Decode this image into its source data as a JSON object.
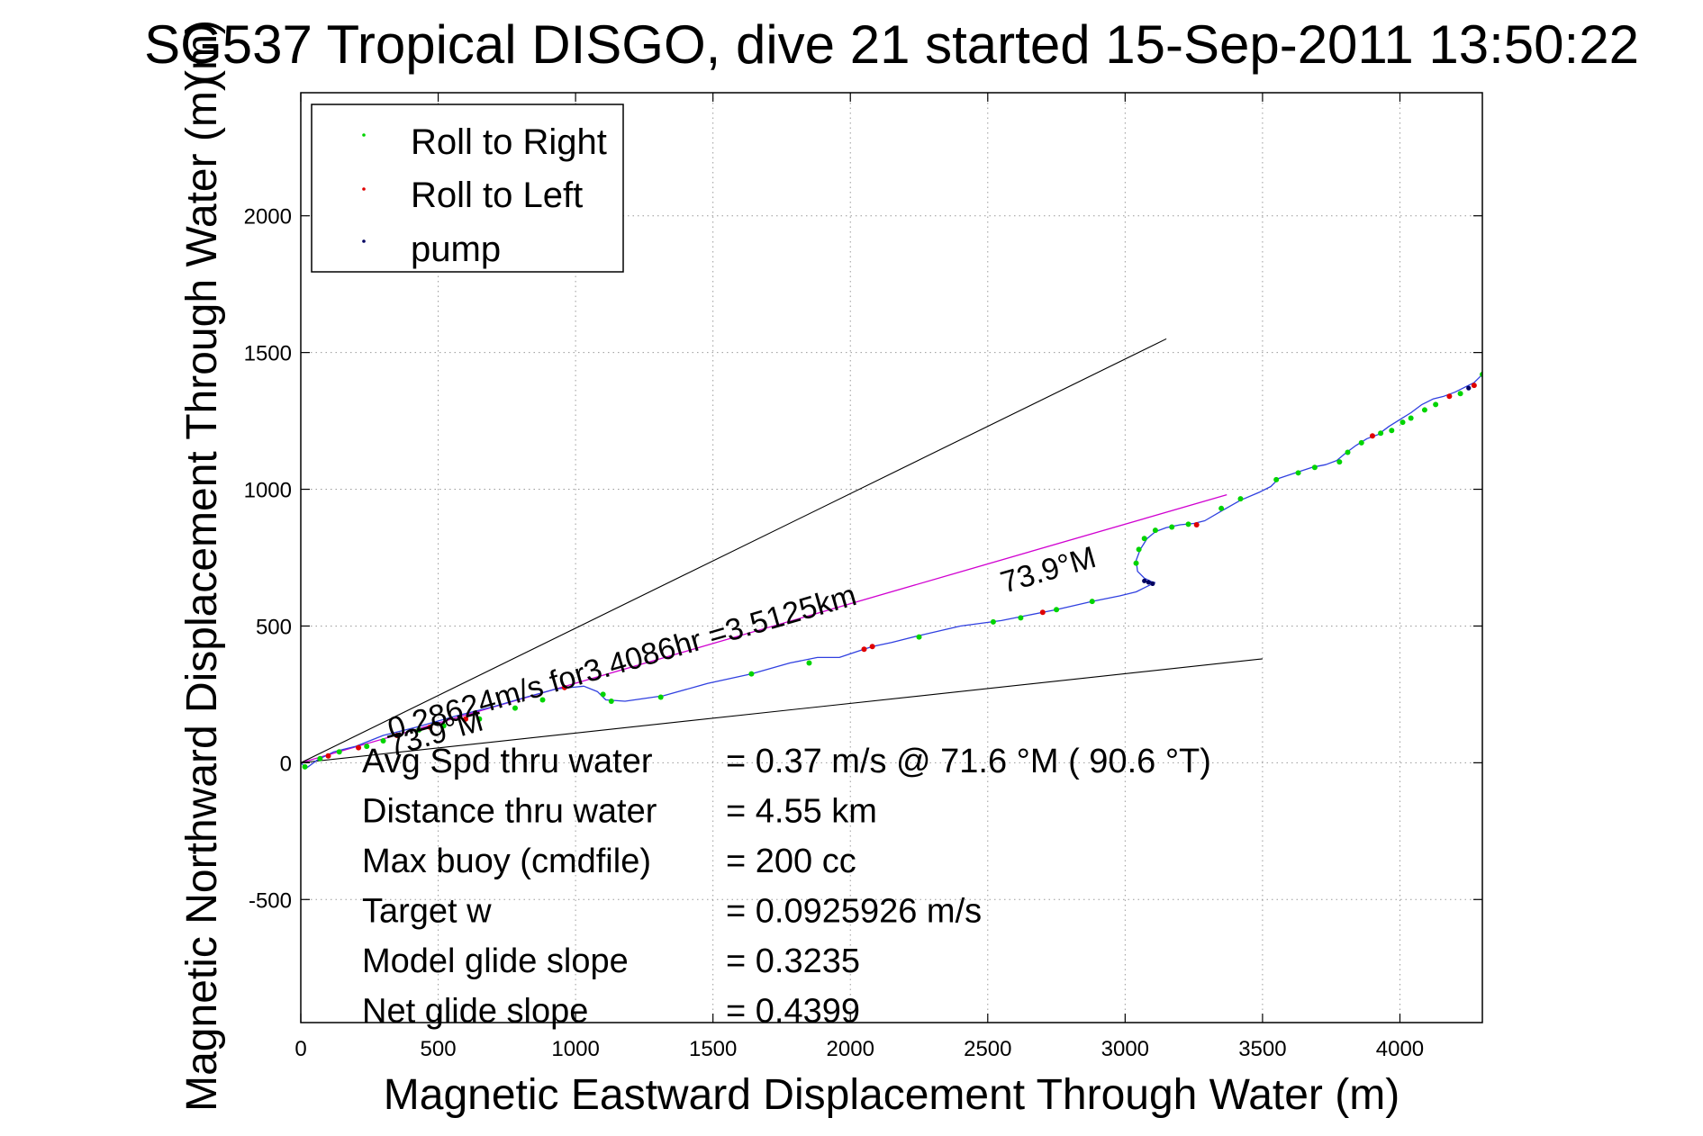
{
  "chart_data": {
    "type": "line",
    "title": "SG537 Tropical DISGO, dive 21 started 15-Sep-2011 13:50:22",
    "title_overlap_glyph": "(m)",
    "xlabel": "Magnetic Eastward Displacement Through Water (m)",
    "ylabel": "Magnetic Northward Displacement Through Water (m)",
    "xlim": [
      0,
      4300
    ],
    "ylim": [
      -950,
      2450
    ],
    "xticks": [
      0,
      500,
      1000,
      1500,
      2000,
      2500,
      3000,
      3500,
      4000
    ],
    "yticks": [
      -500,
      0,
      500,
      1000,
      1500,
      2000
    ],
    "grid": true,
    "legend": {
      "placement": "top-left",
      "entries": [
        {
          "label": "Roll to Right",
          "color": "#00d400"
        },
        {
          "label": "Roll to Left",
          "color": "#e00000"
        },
        {
          "label": "pump",
          "color": "#000060"
        }
      ]
    },
    "colors": {
      "track": "#3040e0",
      "course_line": "#d000d0",
      "cone": "#000000",
      "roll_right": "#00d400",
      "roll_left": "#e00000",
      "pump": "#000060"
    },
    "series": [
      {
        "role": "track",
        "x": [
          0,
          20,
          60,
          120,
          200,
          300,
          420,
          560,
          700,
          820,
          930,
          1030,
          1080,
          1110,
          1180,
          1320,
          1480,
          1640,
          1780,
          1880,
          1960,
          2020,
          2080,
          2150,
          2250,
          2400,
          2550,
          2650,
          2750,
          2880,
          2980,
          3040,
          3080,
          3110
        ],
        "y": [
          0,
          -20,
          10,
          40,
          60,
          100,
          130,
          170,
          205,
          240,
          270,
          280,
          260,
          230,
          225,
          245,
          290,
          325,
          365,
          385,
          385,
          405,
          425,
          440,
          465,
          500,
          520,
          540,
          560,
          590,
          610,
          625,
          645,
          660
        ]
      },
      {
        "role": "track",
        "x": [
          3100,
          3070,
          3045,
          3040,
          3055,
          3080,
          3110,
          3150,
          3200,
          3250,
          3290,
          3350,
          3420,
          3490,
          3530,
          3560,
          3620,
          3680,
          3730,
          3770,
          3800,
          3840,
          3880,
          3920,
          3960,
          4000,
          4040,
          4080,
          4120,
          4160,
          4200,
          4240,
          4270,
          4300
        ],
        "y": [
          660,
          675,
          700,
          740,
          780,
          820,
          845,
          860,
          870,
          875,
          885,
          920,
          960,
          990,
          1010,
          1040,
          1060,
          1080,
          1090,
          1105,
          1130,
          1160,
          1185,
          1200,
          1230,
          1255,
          1280,
          1310,
          1330,
          1340,
          1355,
          1375,
          1390,
          1420
        ]
      }
    ],
    "roll_right_points": {
      "x": [
        15,
        70,
        140,
        240,
        300,
        430,
        520,
        650,
        780,
        880,
        1100,
        1130,
        1310,
        1640,
        1850,
        2250,
        2520,
        2620,
        2750,
        2880,
        3040,
        3050,
        3070,
        3110,
        3170,
        3230,
        3350,
        3420,
        3550,
        3630,
        3690,
        3780,
        3810,
        3860,
        3930,
        3970,
        4010,
        4040,
        4090,
        4130,
        4220,
        4300
      ],
      "y": [
        -15,
        15,
        40,
        60,
        80,
        120,
        135,
        160,
        200,
        230,
        250,
        225,
        240,
        325,
        365,
        460,
        515,
        530,
        560,
        590,
        730,
        780,
        820,
        850,
        862,
        872,
        930,
        965,
        1035,
        1060,
        1080,
        1100,
        1135,
        1170,
        1205,
        1215,
        1245,
        1260,
        1290,
        1310,
        1350,
        1420
      ]
    },
    "roll_left_points": {
      "x": [
        100,
        210,
        350,
        470,
        600,
        960,
        2050,
        2080,
        2700,
        3260,
        3900,
        4180,
        4270
      ],
      "y": [
        25,
        55,
        100,
        130,
        160,
        275,
        415,
        425,
        550,
        870,
        1195,
        1340,
        1380
      ]
    },
    "pump_points": {
      "x": [
        3070,
        3085,
        3100,
        4250
      ],
      "y": [
        665,
        660,
        655,
        1370
      ]
    },
    "reference_lines": [
      {
        "role": "course_line",
        "x": [
          0,
          3370
        ],
        "y": [
          0,
          980
        ]
      },
      {
        "role": "cone_upper",
        "x": [
          0,
          3150
        ],
        "y": [
          0,
          1550
        ]
      },
      {
        "role": "cone_lower",
        "x": [
          0,
          3500
        ],
        "y": [
          0,
          380
        ]
      }
    ],
    "annotations": [
      {
        "text": "0.28624m/s for3.4086hr =3.5125km",
        "x": 330,
        "y": 85,
        "angle_deg": -16.2
      },
      {
        "text": "73.9°M",
        "x": 330,
        "y": 22,
        "angle_deg": -16.2
      },
      {
        "text": "73.9°M",
        "x": 2560,
        "y": 620,
        "angle_deg": -16.2
      }
    ],
    "stats": [
      {
        "label": "Avg Spd thru water",
        "value": "=  0.37 m/s @  71.6 °M ( 90.6 °T)"
      },
      {
        "label": "Distance thru water",
        "value": "=  4.55 km"
      },
      {
        "label": "Max buoy (cmdfile)",
        "value": "= 200 cc"
      },
      {
        "label": "Target w",
        "value": "= 0.0925926 m/s"
      },
      {
        "label": "Model glide slope",
        "value": "= 0.3235"
      },
      {
        "label": "Net glide slope",
        "value": "= 0.4399"
      }
    ]
  }
}
